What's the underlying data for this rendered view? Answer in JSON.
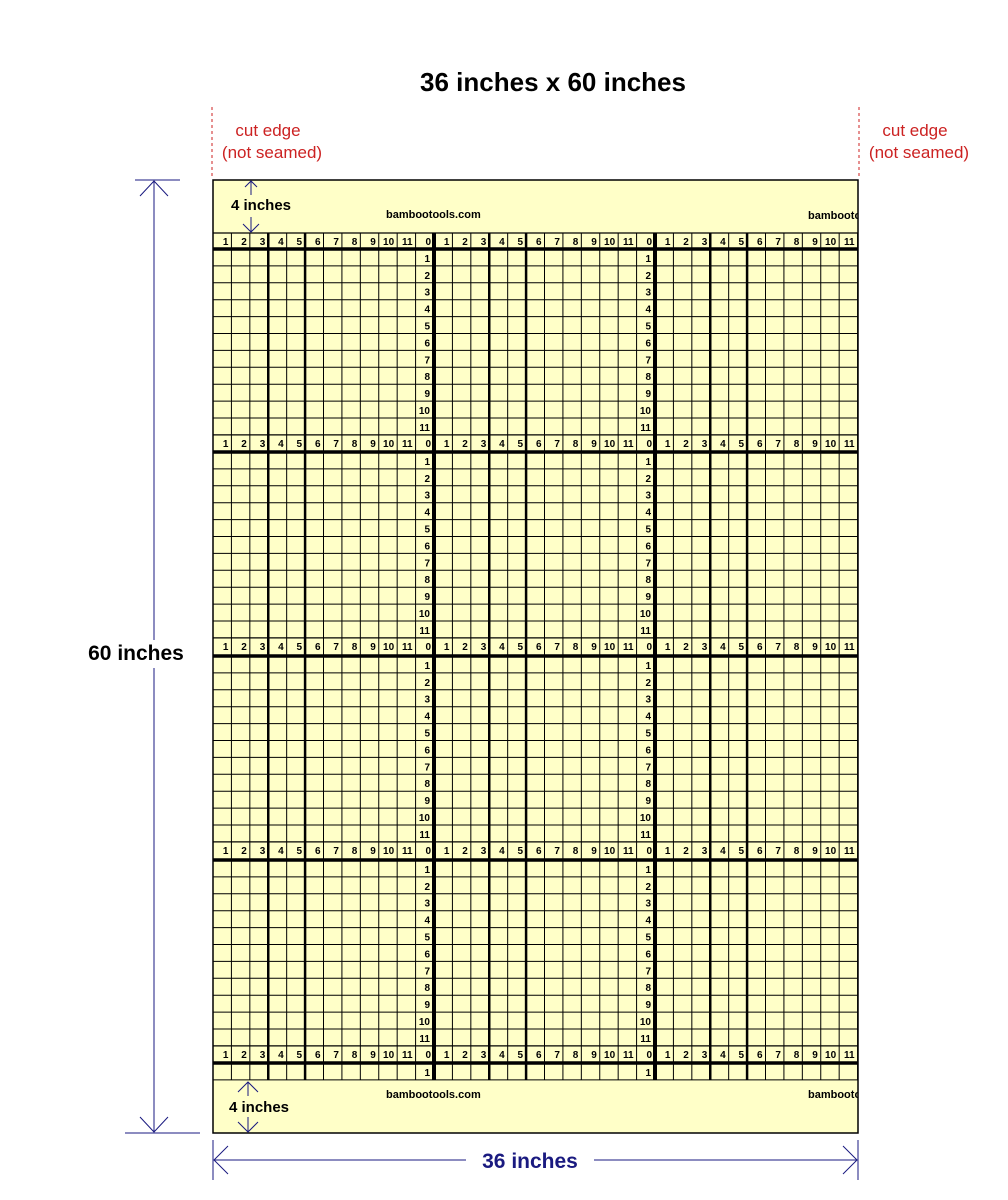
{
  "title": "36 inches x 60 inches",
  "cut_edge_label_line1": "cut edge",
  "cut_edge_label_line2": "(not seamed)",
  "height_label": "60 inches",
  "width_label": "36 inches",
  "margin_label": "4 inches",
  "watermark": "bambootools.com",
  "inch_labels": [
    "0",
    "1",
    "2",
    "3",
    "4",
    "5",
    "6",
    "7",
    "8",
    "9",
    "10",
    "11"
  ],
  "colors": {
    "fabric": "#FFFFC8",
    "grid": "#000000",
    "cut_edge": "#CC2222",
    "dimension": "#1A1A80"
  }
}
